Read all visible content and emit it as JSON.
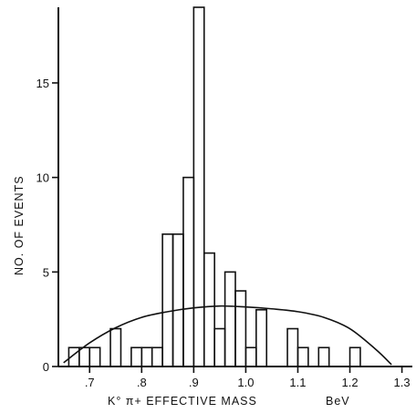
{
  "chart_data": {
    "type": "histogram",
    "title": "",
    "xlabel": "K° π+ EFFECTIVE MASS",
    "xunit": "BeV",
    "ylabel": "NO. OF EVENTS",
    "xlim": [
      0.64,
      1.32
    ],
    "ylim": [
      0,
      19
    ],
    "bin_width": 0.02,
    "bin_start": 0.66,
    "counts": [
      1,
      1,
      1,
      0,
      2,
      0,
      1,
      1,
      1,
      7,
      7,
      10,
      19,
      6,
      2,
      5,
      4,
      1,
      3,
      0,
      0,
      2,
      1,
      0,
      1,
      0,
      0,
      1,
      0
    ],
    "x_ticks": [
      {
        "value": 0.7,
        "label": ".7"
      },
      {
        "value": 0.8,
        "label": ".8"
      },
      {
        "value": 0.9,
        "label": ".9"
      },
      {
        "value": 1.0,
        "label": "1.0"
      },
      {
        "value": 1.1,
        "label": "1.1"
      },
      {
        "value": 1.2,
        "label": "1.2"
      },
      {
        "value": 1.3,
        "label": "1.3"
      }
    ],
    "y_ticks": [
      {
        "value": 0,
        "label": "0"
      },
      {
        "value": 5,
        "label": "5"
      },
      {
        "value": 10,
        "label": "10"
      },
      {
        "value": 15,
        "label": "15"
      }
    ],
    "curve": {
      "x": [
        0.65,
        0.7,
        0.75,
        0.8,
        0.85,
        0.9,
        0.95,
        1.0,
        1.05,
        1.1,
        1.15,
        1.2,
        1.25,
        1.28
      ],
      "y": [
        0.2,
        1.25,
        2.05,
        2.6,
        2.9,
        3.1,
        3.2,
        3.15,
        3.05,
        2.9,
        2.6,
        2.0,
        0.9,
        0.1
      ]
    },
    "grid": false,
    "legend": "none"
  }
}
